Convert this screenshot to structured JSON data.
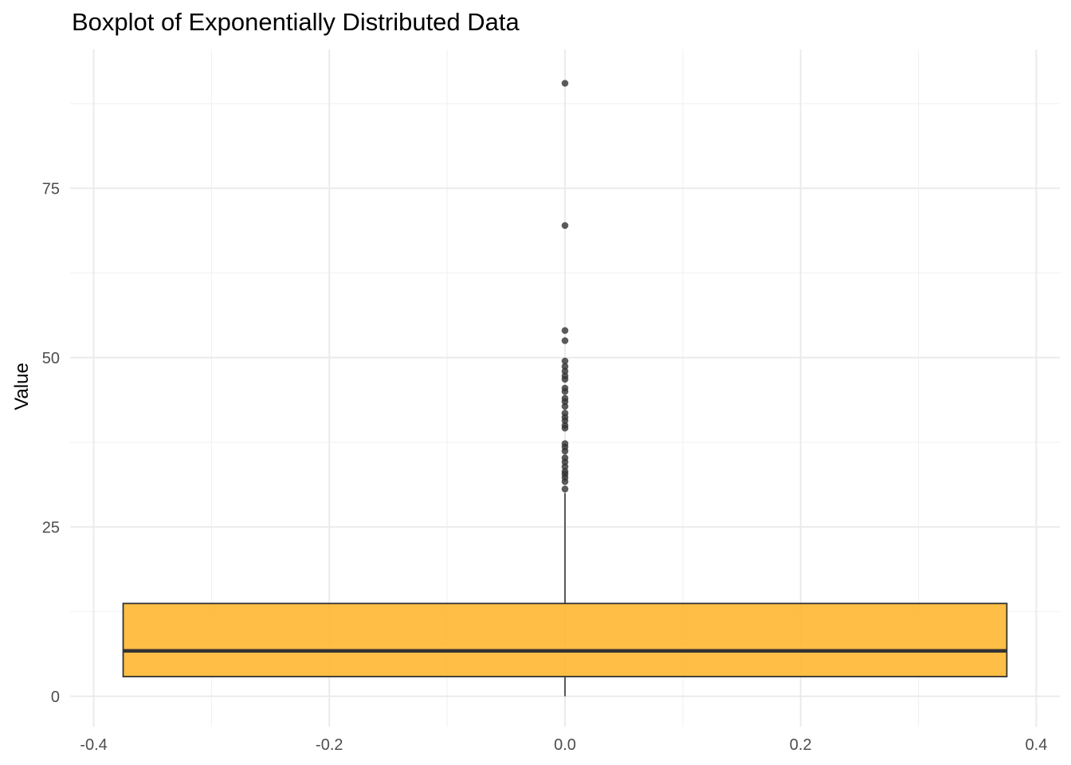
{
  "chart_data": {
    "type": "boxplot",
    "title": "Boxplot of Exponentially Distributed Data",
    "xlabel": "",
    "ylabel": "Value",
    "xlim": [
      -0.42,
      0.42
    ],
    "ylim": [
      -4.5,
      95.5
    ],
    "x_ticks": [
      -0.4,
      -0.2,
      0.0,
      0.2,
      0.4
    ],
    "x_tick_labels": [
      "-0.4",
      "-0.2",
      "0.0",
      "0.2",
      "0.4"
    ],
    "y_ticks": [
      0,
      25,
      50,
      75
    ],
    "y_tick_labels": [
      "0",
      "25",
      "50",
      "75"
    ],
    "x_minor_ticks": [
      -0.3,
      -0.1,
      0.1,
      0.3
    ],
    "y_minor_ticks": [
      12.5,
      37.5,
      62.5,
      87.5
    ],
    "grid": true,
    "box": {
      "x": 0.0,
      "box_xmin": -0.375,
      "box_xmax": 0.375,
      "q1": 2.9,
      "median": 6.7,
      "q3": 13.7,
      "whisker_low": 0.0,
      "whisker_high": 30.0,
      "fill": "#FFB732",
      "edge": "#333333"
    },
    "outliers": [
      90.5,
      69.5,
      54.0,
      52.5,
      49.5,
      48.7,
      48.0,
      47.3,
      46.8,
      45.5,
      45.0,
      44.0,
      43.5,
      42.8,
      41.8,
      41.2,
      40.7,
      40.0,
      39.6,
      37.3,
      36.8,
      36.2,
      35.2,
      34.6,
      33.9,
      33.2,
      32.8,
      32.3,
      31.7,
      30.6
    ],
    "outlier_color": "#333333"
  }
}
